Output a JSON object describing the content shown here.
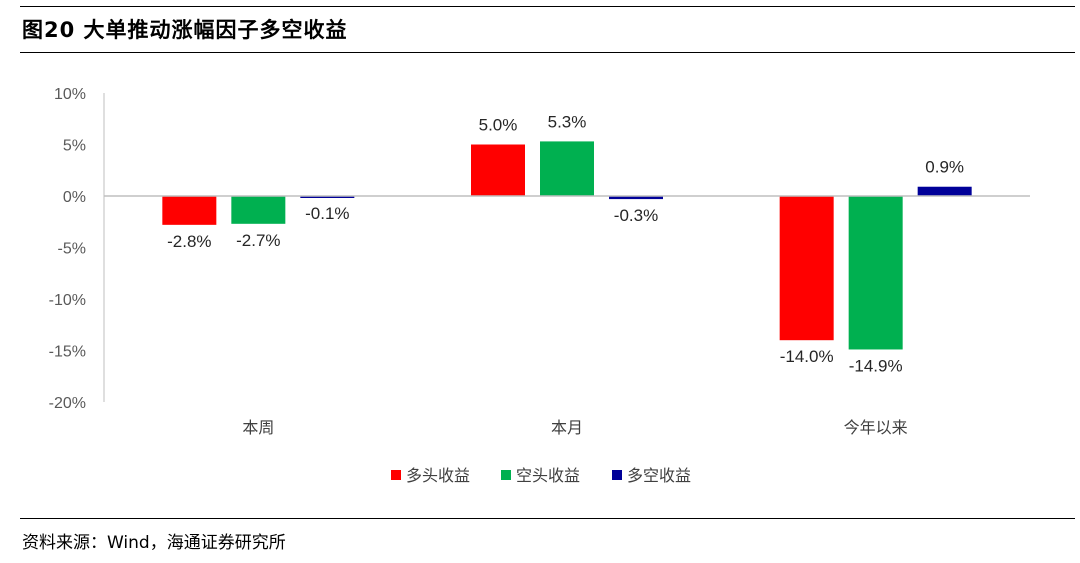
{
  "title": "图20 大单推动涨幅因子多空收益",
  "source": "资料来源：Wind，海通证券研究所",
  "chart_data": {
    "type": "bar",
    "categories": [
      "本周",
      "本月",
      "今年以来"
    ],
    "series": [
      {
        "name": "多头收益",
        "color": "#ff0000",
        "values": [
          -2.8,
          5.0,
          -14.0
        ],
        "labels": [
          "-2.8%",
          "5.0%",
          "-14.0%"
        ]
      },
      {
        "name": "空头收益",
        "color": "#00b050",
        "values": [
          -2.7,
          5.3,
          -14.9
        ],
        "labels": [
          "-2.7%",
          "5.3%",
          "-14.9%"
        ]
      },
      {
        "name": "多空收益",
        "color": "#000099",
        "values": [
          -0.1,
          -0.3,
          0.9
        ],
        "labels": [
          "-0.1%",
          "-0.3%",
          "0.9%"
        ]
      }
    ],
    "ylim": [
      -20,
      10
    ],
    "yticks": [
      10,
      5,
      0,
      -5,
      -10,
      -15,
      -20
    ],
    "ytick_labels": [
      "10%",
      "5%",
      "0%",
      "-5%",
      "-10%",
      "-15%",
      "-20%"
    ],
    "legend_position": "bottom",
    "grid": false
  }
}
